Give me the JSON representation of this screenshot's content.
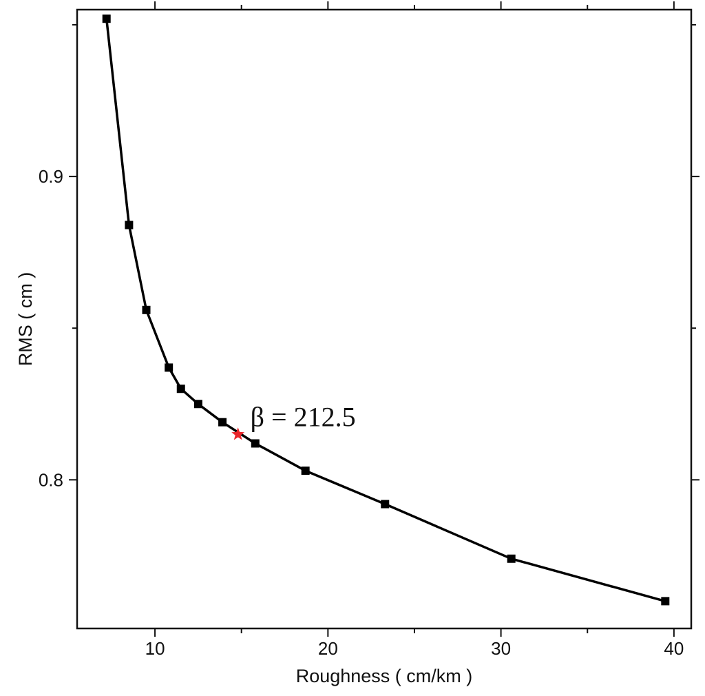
{
  "chart_data": {
    "type": "line",
    "xlabel": "Roughness ( cm/km )",
    "ylabel": "RMS ( cm )",
    "xlim": [
      5.5,
      41
    ],
    "ylim": [
      0.751,
      0.955
    ],
    "xticks": [
      10,
      20,
      30,
      40
    ],
    "xtick_labels": [
      "10",
      "20",
      "30",
      "40"
    ],
    "yticks": [
      0.8,
      0.9
    ],
    "ytick_labels": [
      "0.8",
      "0.9"
    ],
    "grid": false,
    "series": [
      {
        "color": "#000000",
        "marker": "square",
        "x": [
          7.2,
          8.5,
          9.5,
          10.8,
          11.5,
          12.5,
          13.9,
          15.8,
          18.7,
          23.3,
          30.6,
          39.5
        ],
        "y": [
          0.952,
          0.884,
          0.856,
          0.837,
          0.83,
          0.825,
          0.819,
          0.812,
          0.803,
          0.792,
          0.774,
          0.76
        ]
      }
    ],
    "highlight": {
      "x": 14.8,
      "y": 0.815,
      "color": "#e8262b",
      "marker": "star",
      "label": "β = 212.5"
    }
  }
}
